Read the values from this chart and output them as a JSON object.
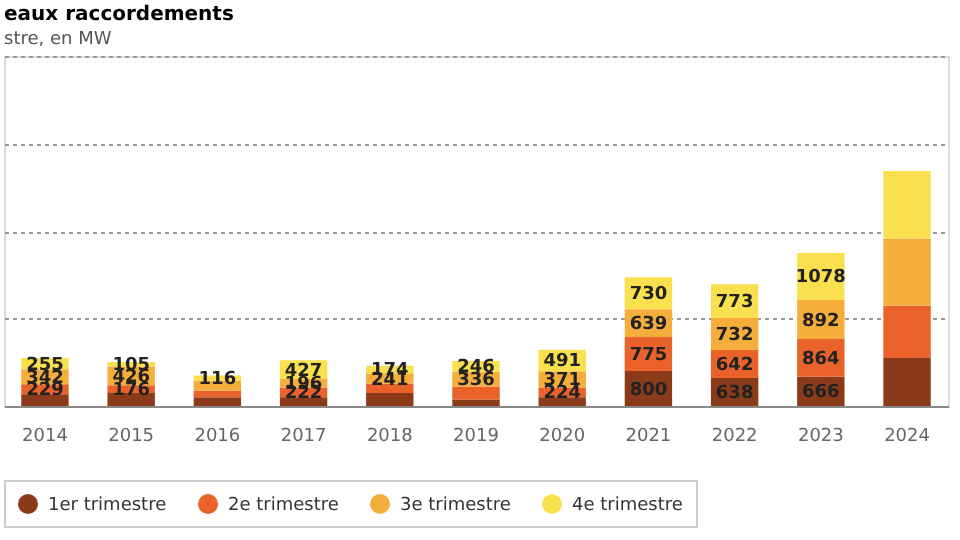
{
  "chart_data": {
    "type": "bar",
    "title": "eaux raccordements",
    "subtitle": "stre, en MW",
    "categories": [
      "2014",
      "2015",
      "2016",
      "2017",
      "2018",
      "2019",
      "2020",
      "2021",
      "2022",
      "2023",
      "2024"
    ],
    "stacked": true,
    "legend": "bottom",
    "grid": "y",
    "tick_labels": "x",
    "ylim": [
      0,
      8000
    ],
    "yticks": [
      {
        "value": 0,
        "label": null
      },
      {
        "value": 2000,
        "label": null
      },
      {
        "value": 4000,
        "label": null
      },
      {
        "value": 6000,
        "label": null
      },
      {
        "value": 8000,
        "label": null
      }
    ],
    "series": [
      {
        "name": "1er trimestre",
        "color": "#8b3a1a",
        "values": [
          270,
          300,
          200,
          200,
          300,
          150,
          200,
          800,
          638,
          666,
          1100
        ],
        "value_labels": [
          null,
          null,
          null,
          null,
          null,
          null,
          null,
          "800",
          "638",
          "666",
          null
        ]
      },
      {
        "name": "2e trimestre",
        "color": "#e8622a",
        "values": [
          229,
          176,
          150,
          222,
          207,
          297,
          224,
          775,
          642,
          864,
          1190
        ],
        "value_labels": [
          "229",
          "176",
          null,
          "222",
          null,
          null,
          "224",
          "775",
          "642",
          "864",
          null
        ]
      },
      {
        "name": "3e trimestre",
        "color": "#f5ad3c",
        "values": [
          342,
          426,
          233,
          196,
          241,
          336,
          371,
          639,
          732,
          892,
          1540
        ],
        "value_labels": [
          "342",
          "426",
          null,
          "196",
          "241",
          "336",
          "371",
          "639",
          "732",
          "892",
          null
        ]
      },
      {
        "name": "4e trimestre",
        "color": "#f8e04e",
        "values": [
          255,
          105,
          116,
          427,
          174,
          246,
          491,
          730,
          773,
          1078,
          1540
        ],
        "value_labels": [
          "255",
          "105",
          "116",
          "427",
          "174",
          "246",
          "491",
          "730",
          "773",
          "1078",
          null
        ]
      }
    ]
  }
}
